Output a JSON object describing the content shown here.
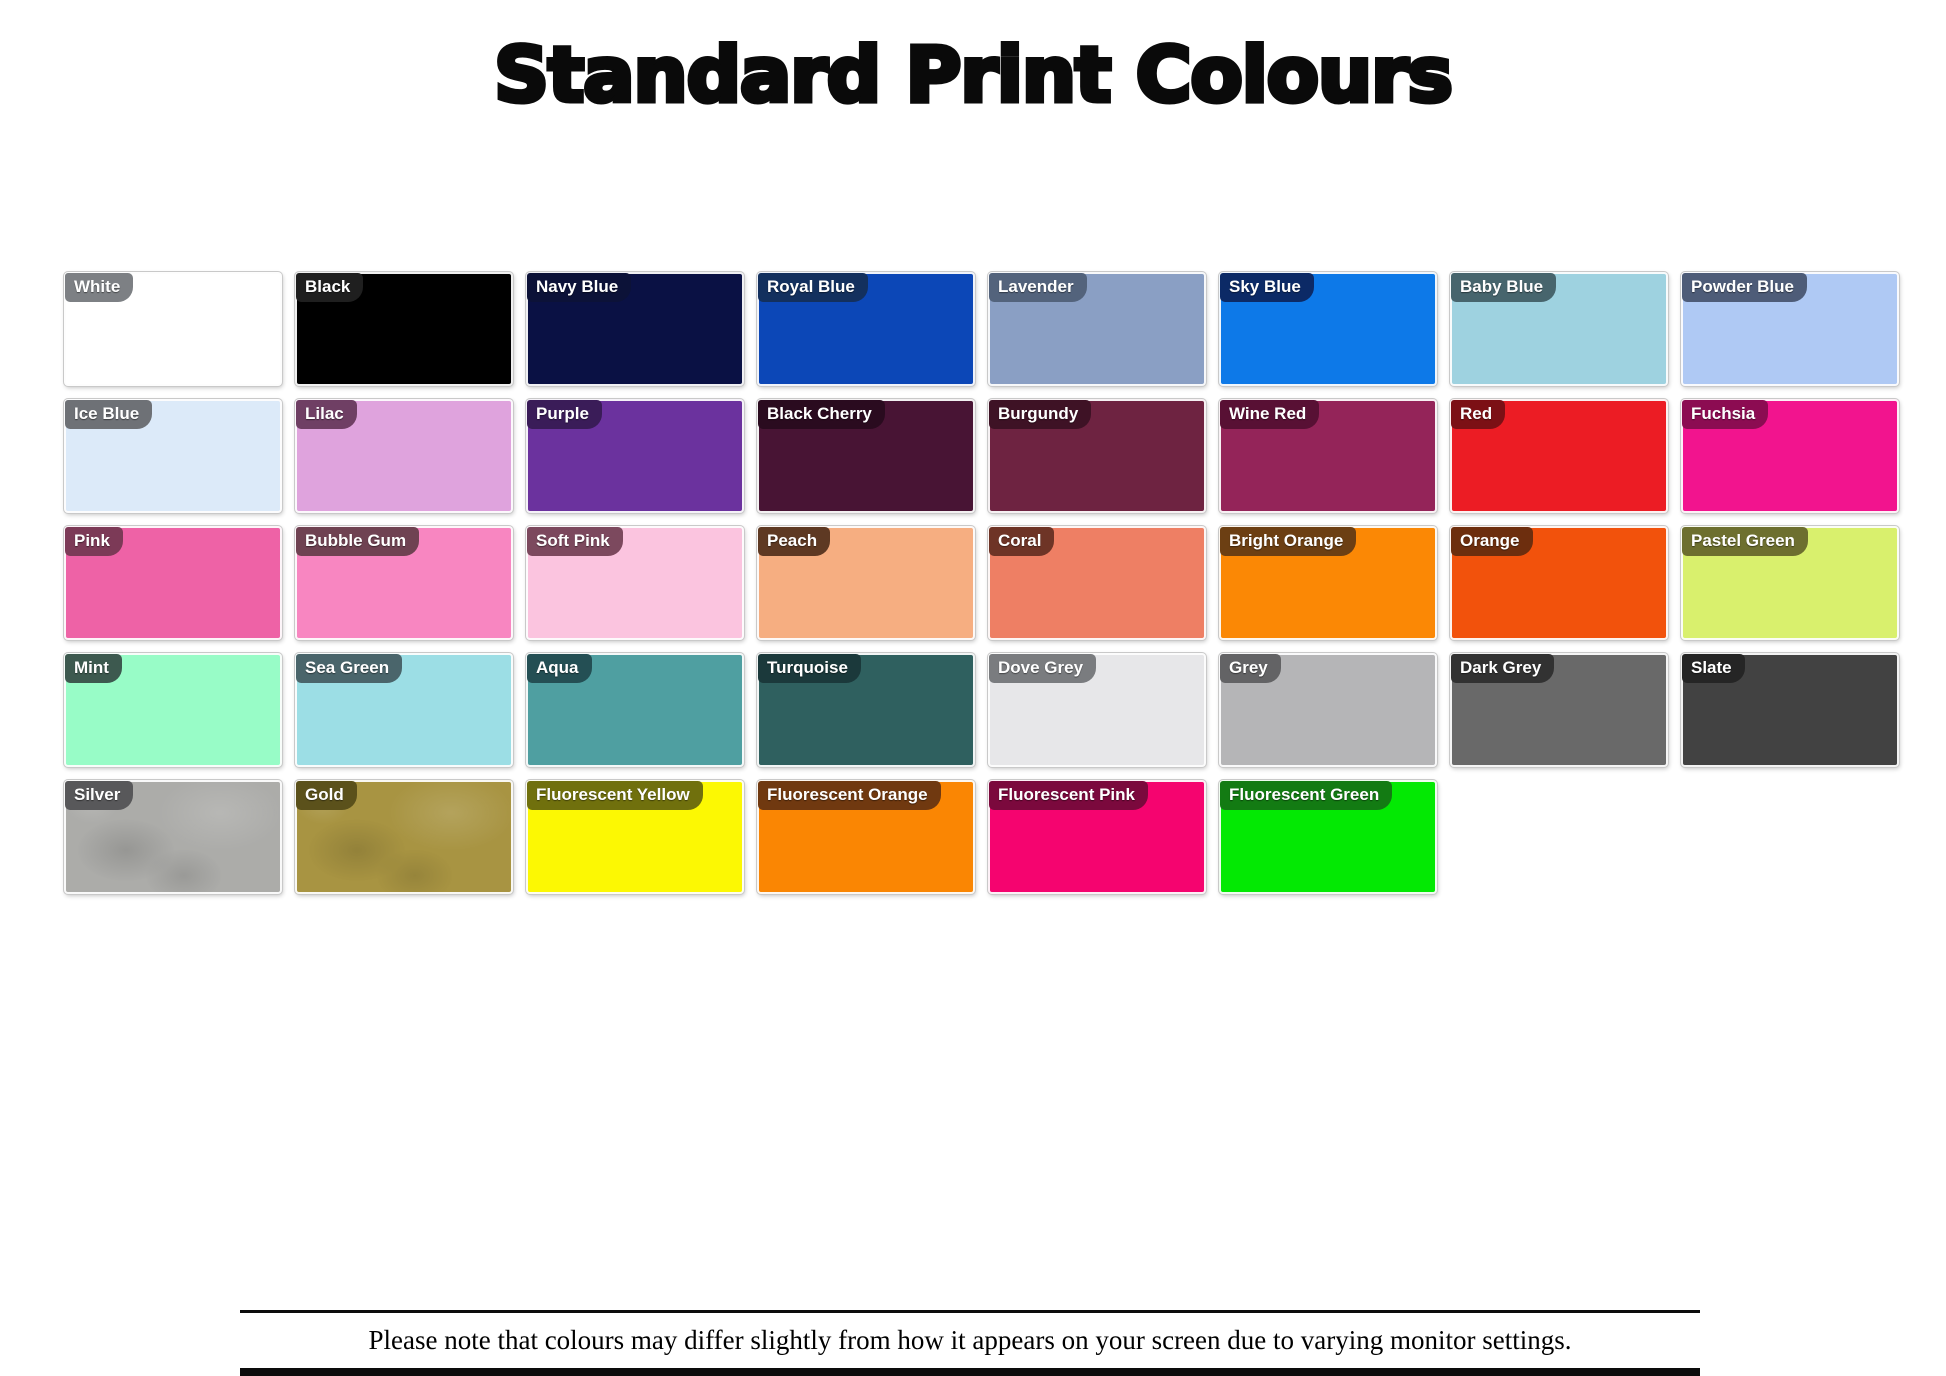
{
  "title": "Standard Print Colours",
  "footer": {
    "note": "Please note that colours may differ slightly from how it appears on your screen due to varying monitor settings."
  },
  "swatches": [
    {
      "label": "White",
      "color": "#ffffff",
      "badge": "#7d8084"
    },
    {
      "label": "Black",
      "color": "#000000",
      "badge": "#1f1f1f"
    },
    {
      "label": "Navy Blue",
      "color": "#0a1144",
      "badge": "#0c1238"
    },
    {
      "label": "Royal Blue",
      "color": "#0c47b7",
      "badge": "#13305e"
    },
    {
      "label": "Lavender",
      "color": "#8a9fc4",
      "badge": "#53637c"
    },
    {
      "label": "Sky Blue",
      "color": "#0d79e8",
      "badge": "#0c2a66"
    },
    {
      "label": "Baby Blue",
      "color": "#9ed2e0",
      "badge": "#47656d"
    },
    {
      "label": "Powder Blue",
      "color": "#afc9f4",
      "badge": "#4e5c78"
    },
    {
      "label": "Ice Blue",
      "color": "#dceaf9",
      "badge": "#6e7176"
    },
    {
      "label": "Lilac",
      "color": "#dfa3dd",
      "badge": "#6f3f64"
    },
    {
      "label": "Purple",
      "color": "#6b329e",
      "badge": "#3a1c58"
    },
    {
      "label": "Black Cherry",
      "color": "#481434",
      "badge": "#2a0b1f"
    },
    {
      "label": "Burgundy",
      "color": "#6e2341",
      "badge": "#3e1225"
    },
    {
      "label": "Wine Red",
      "color": "#942459",
      "badge": "#581034"
    },
    {
      "label": "Red",
      "color": "#ec1c24",
      "badge": "#7c1015"
    },
    {
      "label": "Fuchsia",
      "color": "#f2148e",
      "badge": "#8c0c52"
    },
    {
      "label": "Pink",
      "color": "#ee62a6",
      "badge": "#7c3a57"
    },
    {
      "label": "Bubble Gum",
      "color": "#f886c1",
      "badge": "#6f4252"
    },
    {
      "label": "Soft Pink",
      "color": "#fbc4df",
      "badge": "#7c495e"
    },
    {
      "label": "Peach",
      "color": "#f6ae81",
      "badge": "#5e3923"
    },
    {
      "label": "Coral",
      "color": "#ee7f64",
      "badge": "#6e3426"
    },
    {
      "label": "Bright Orange",
      "color": "#fb8805",
      "badge": "#6c3f13"
    },
    {
      "label": "Orange",
      "color": "#f2520c",
      "badge": "#6d2e0e"
    },
    {
      "label": "Pastel Green",
      "color": "#d9f06d",
      "badge": "#6d6f2f"
    },
    {
      "label": "Mint",
      "color": "#98fcc7",
      "badge": "#3d594f"
    },
    {
      "label": "Sea Green",
      "color": "#9cdee5",
      "badge": "#4a656b"
    },
    {
      "label": "Aqua",
      "color": "#4f9fa1",
      "badge": "#244f54"
    },
    {
      "label": "Turquoise",
      "color": "#2f605f",
      "badge": "#1b393b"
    },
    {
      "label": "Dove Grey",
      "color": "#e7e7e9",
      "badge": "#7a7c7f"
    },
    {
      "label": "Grey",
      "color": "#b5b5b7",
      "badge": "#636365"
    },
    {
      "label": "Dark Grey",
      "color": "#696969",
      "badge": "#323232"
    },
    {
      "label": "Slate",
      "color": "#424242",
      "badge": "#252525"
    },
    {
      "label": "Silver",
      "color": "#acaca9",
      "badge": "#58585a",
      "textured": true
    },
    {
      "label": "Gold",
      "color": "#a89442",
      "badge": "#5b511b",
      "textured": true
    },
    {
      "label": "Fluorescent Yellow",
      "color": "#fcf803",
      "badge": "#70700d"
    },
    {
      "label": "Fluorescent Orange",
      "color": "#fa8603",
      "badge": "#703910"
    },
    {
      "label": "Fluorescent Pink",
      "color": "#f5046f",
      "badge": "#7b093d"
    },
    {
      "label": "Fluorescent Green",
      "color": "#03e903",
      "badge": "#137b13"
    }
  ]
}
